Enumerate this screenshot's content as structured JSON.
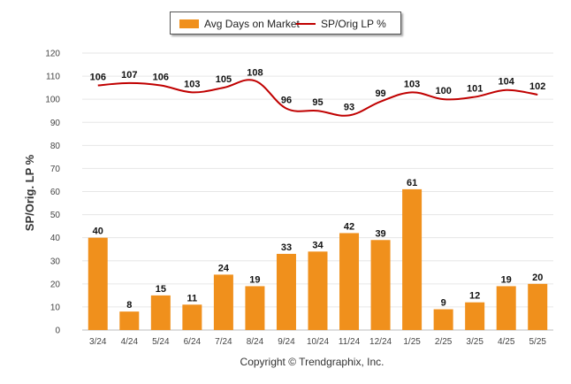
{
  "legend": {
    "bar_label": "Avg Days on Market",
    "line_label": "SP/Orig LP %"
  },
  "copyright": "Copyright © Trendgraphix, Inc.",
  "colors": {
    "bar": "#f0901c",
    "line": "#c00000",
    "grid": "#e6e6e6"
  },
  "chart_data": {
    "type": "bar",
    "categories": [
      "3/24",
      "4/24",
      "5/24",
      "6/24",
      "7/24",
      "8/24",
      "9/24",
      "10/24",
      "11/24",
      "12/24",
      "1/25",
      "2/25",
      "3/25",
      "4/25",
      "5/25"
    ],
    "series": [
      {
        "name": "Avg Days on Market",
        "type": "bar",
        "values": [
          40,
          8,
          15,
          11,
          24,
          19,
          33,
          34,
          42,
          39,
          61,
          9,
          12,
          19,
          20
        ]
      },
      {
        "name": "SP/Orig LP %",
        "type": "line",
        "values": [
          106,
          107,
          106,
          103,
          105,
          108,
          96,
          95,
          93,
          99,
          103,
          100,
          101,
          104,
          102
        ]
      }
    ],
    "ylabel": "SP/Orig. LP %",
    "ylim": [
      0,
      120
    ],
    "yticks": [
      0,
      10,
      20,
      30,
      40,
      50,
      60,
      70,
      80,
      90,
      100,
      110,
      120
    ],
    "grid": true,
    "legend_position": "top-center"
  }
}
